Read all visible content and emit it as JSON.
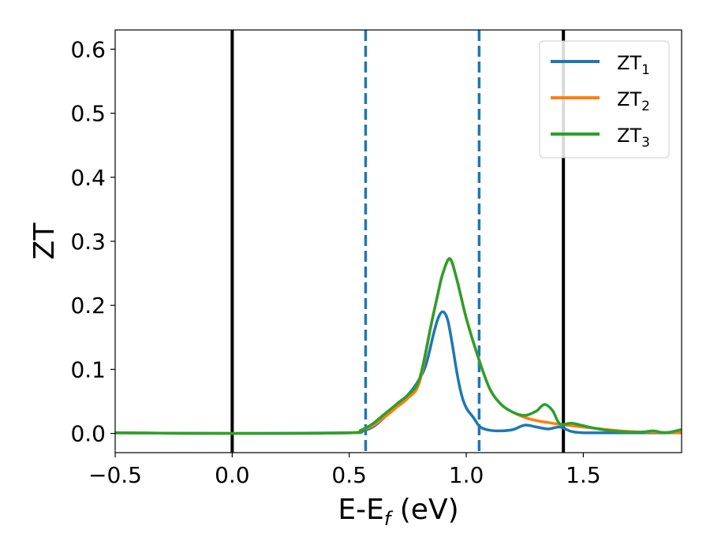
{
  "chart_data": {
    "type": "line",
    "xlabel": "E-E",
    "xlabel_sub": "f",
    "xlabel_unit": " (eV)",
    "ylabel": "ZT",
    "xlim": [
      -0.5,
      1.92
    ],
    "ylim": [
      -0.03,
      0.63
    ],
    "x_ticks": [
      -0.5,
      0.0,
      0.5,
      1.0,
      1.5
    ],
    "x_tick_labels": [
      "−0.5",
      "0.0",
      "0.5",
      "1.0",
      "1.5"
    ],
    "y_ticks": [
      0.0,
      0.1,
      0.2,
      0.3,
      0.4,
      0.5,
      0.6
    ],
    "y_tick_labels": [
      "0.0",
      "0.1",
      "0.2",
      "0.3",
      "0.4",
      "0.5",
      "0.6"
    ],
    "grid": false,
    "legend_position": "top-right",
    "reference_lines": [
      {
        "x": 0.0,
        "style": "solid",
        "color": "#000000"
      },
      {
        "x": 1.415,
        "style": "solid",
        "color": "#000000"
      },
      {
        "x": 0.57,
        "style": "dashed",
        "color": "#1f77b4"
      },
      {
        "x": 1.055,
        "style": "dashed",
        "color": "#1f77b4"
      }
    ],
    "series": [
      {
        "name": "ZT",
        "name_sub": "1",
        "color": "#1f77b4",
        "x": [
          -0.5,
          0.0,
          0.5,
          0.55,
          0.6,
          0.65,
          0.7,
          0.75,
          0.8,
          0.83,
          0.86,
          0.88,
          0.9,
          0.92,
          0.94,
          0.96,
          0.98,
          1.0,
          1.03,
          1.06,
          1.1,
          1.15,
          1.2,
          1.25,
          1.3,
          1.35,
          1.4,
          1.45,
          1.5,
          1.6,
          1.7,
          1.8,
          1.92
        ],
        "y": [
          0.001,
          0.0,
          0.001,
          0.003,
          0.01,
          0.025,
          0.045,
          0.06,
          0.085,
          0.11,
          0.155,
          0.18,
          0.19,
          0.178,
          0.14,
          0.095,
          0.06,
          0.04,
          0.025,
          0.01,
          0.005,
          0.004,
          0.006,
          0.013,
          0.01,
          0.007,
          0.01,
          0.003,
          0.001,
          0.001,
          0.001,
          0.001,
          0.001
        ]
      },
      {
        "name": "ZT",
        "name_sub": "2",
        "color": "#ff7f0e",
        "x": [
          -0.5,
          0.0,
          0.5,
          0.55,
          0.6,
          0.65,
          0.7,
          0.75,
          0.8,
          0.85,
          0.88,
          0.9,
          0.93,
          0.96,
          1.0,
          1.05,
          1.1,
          1.15,
          1.2,
          1.25,
          1.3,
          1.35,
          1.4,
          1.45,
          1.5,
          1.55,
          1.6,
          1.7,
          1.8,
          1.92
        ],
        "y": [
          0.001,
          0.0,
          0.001,
          0.005,
          0.012,
          0.025,
          0.04,
          0.055,
          0.08,
          0.17,
          0.22,
          0.25,
          0.272,
          0.24,
          0.18,
          0.12,
          0.07,
          0.045,
          0.033,
          0.025,
          0.02,
          0.017,
          0.014,
          0.012,
          0.01,
          0.008,
          0.006,
          0.003,
          0.002,
          0.001
        ]
      },
      {
        "name": "ZT",
        "name_sub": "3",
        "color": "#2ca02c",
        "x": [
          -0.5,
          0.0,
          0.5,
          0.55,
          0.6,
          0.65,
          0.7,
          0.75,
          0.8,
          0.85,
          0.88,
          0.9,
          0.93,
          0.96,
          1.0,
          1.05,
          1.1,
          1.15,
          1.2,
          1.25,
          1.3,
          1.32,
          1.34,
          1.37,
          1.4,
          1.45,
          1.5,
          1.55,
          1.6,
          1.65,
          1.7,
          1.75,
          1.8,
          1.85,
          1.92
        ],
        "y": [
          0.001,
          0.0,
          0.001,
          0.005,
          0.015,
          0.03,
          0.045,
          0.06,
          0.085,
          0.17,
          0.22,
          0.25,
          0.273,
          0.24,
          0.18,
          0.12,
          0.07,
          0.045,
          0.033,
          0.028,
          0.035,
          0.042,
          0.045,
          0.035,
          0.015,
          0.016,
          0.012,
          0.008,
          0.005,
          0.003,
          0.002,
          0.002,
          0.004,
          0.001,
          0.006
        ]
      }
    ]
  }
}
